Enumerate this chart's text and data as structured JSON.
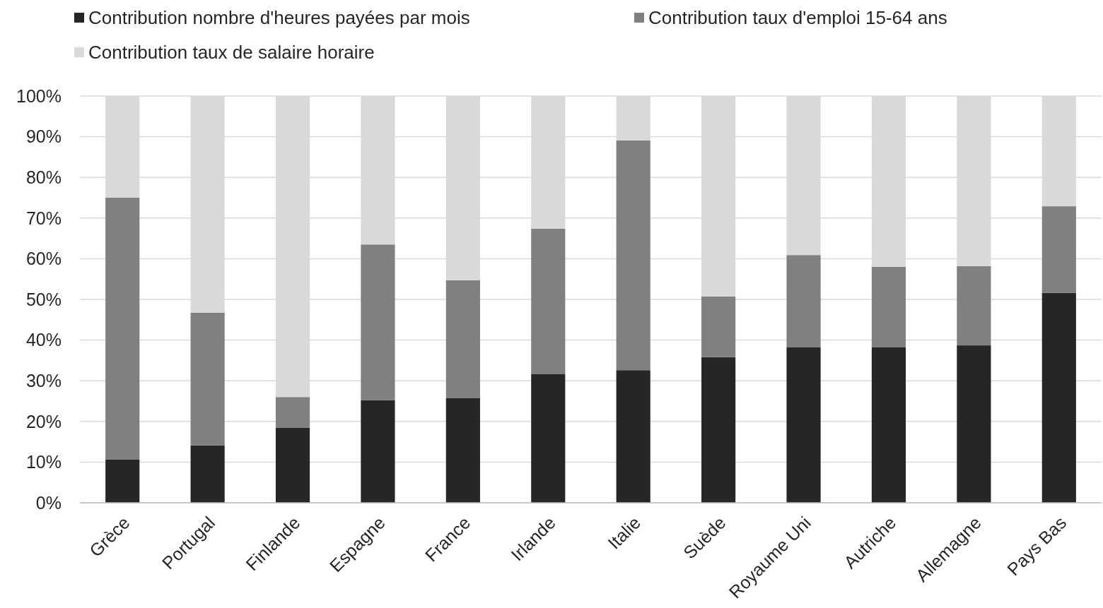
{
  "chart_data": {
    "type": "bar",
    "stacked": true,
    "categories": [
      "Grèce",
      "Portugal",
      "Finlande",
      "Espagne",
      "France",
      "Irlande",
      "Italie",
      "Suède",
      "Royaume Uni",
      "Autriche",
      "Allemagne",
      "Pays Bas"
    ],
    "series": [
      {
        "name": "Contribution nombre d'heures payées par mois",
        "color": "#262626",
        "values": [
          10.6,
          14.1,
          18.4,
          25.2,
          25.7,
          31.6,
          32.6,
          35.8,
          38.2,
          38.2,
          38.7,
          51.6
        ]
      },
      {
        "name": "Contribution taux d'emploi 15-64 ans",
        "color": "#808080",
        "values": [
          64.4,
          32.6,
          7.6,
          38.3,
          29.0,
          35.8,
          56.5,
          14.9,
          22.7,
          19.8,
          19.5,
          21.3
        ]
      },
      {
        "name": "Contribution taux de salaire horaire",
        "color": "#d9d9d9",
        "values": [
          25.0,
          53.3,
          74.0,
          36.5,
          45.3,
          32.6,
          10.9,
          49.3,
          39.1,
          42.0,
          41.8,
          27.1
        ]
      }
    ],
    "ylim": [
      0,
      100
    ],
    "yticks": [
      {
        "value": 0,
        "label": "0%"
      },
      {
        "value": 10,
        "label": "10%"
      },
      {
        "value": 20,
        "label": "20%"
      },
      {
        "value": 30,
        "label": "30%"
      },
      {
        "value": 40,
        "label": "40%"
      },
      {
        "value": 50,
        "label": "50%"
      },
      {
        "value": 60,
        "label": "60%"
      },
      {
        "value": 70,
        "label": "70%"
      },
      {
        "value": 80,
        "label": "80%"
      },
      {
        "value": 90,
        "label": "90%"
      },
      {
        "value": 100,
        "label": "100%"
      }
    ],
    "grid": "y",
    "legend": "top"
  }
}
